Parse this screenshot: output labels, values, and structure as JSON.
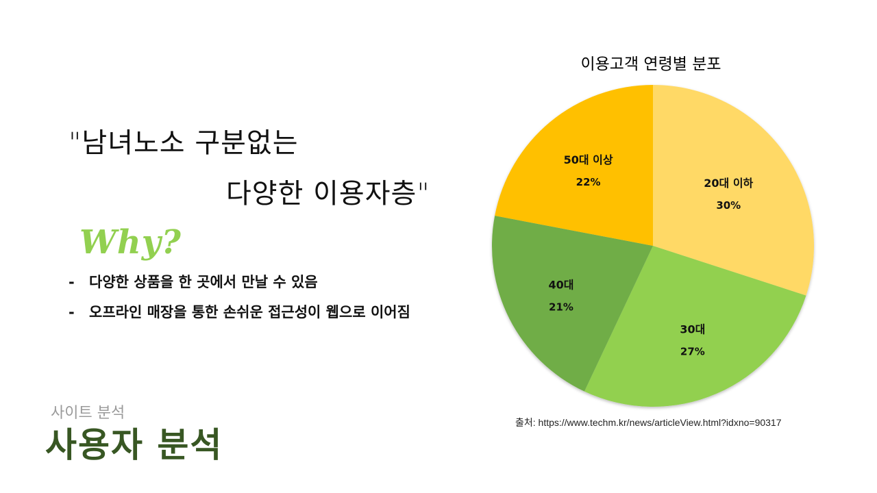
{
  "quote": {
    "line1": "\"남녀노소 구분없는",
    "line2": "다양한 이용자층\""
  },
  "why": {
    "label": "Why?",
    "color": "#92d050"
  },
  "bullets": [
    {
      "dash": "-",
      "text": "다양한 상품을 한 곳에서 만날 수 있음"
    },
    {
      "dash": "-",
      "text": "오프라인 매장을 통한 손쉬운 접근성이 웹으로 이어짐"
    }
  ],
  "section": {
    "subtitle": "사이트 분석",
    "title": "사용자 분석",
    "title_color": "#385723"
  },
  "source": "출처: https://www.techm.kr/news/articleView.html?idxno=90317",
  "chart_data": {
    "type": "pie",
    "title": "이용고객 연령별 분포",
    "slices": [
      {
        "label": "20대 이하",
        "value": 30,
        "display": "30%",
        "color": "#ffd966"
      },
      {
        "label": "30대",
        "value": 27,
        "display": "27%",
        "color": "#92d050"
      },
      {
        "label": "40대",
        "value": 21,
        "display": "21%",
        "color": "#70ad47"
      },
      {
        "label": "50대 이상",
        "value": 22,
        "display": "22%",
        "color": "#ffc000"
      }
    ],
    "start_angle": "12 o'clock",
    "direction": "clockwise",
    "legend": "none",
    "data_labels": "inside"
  }
}
